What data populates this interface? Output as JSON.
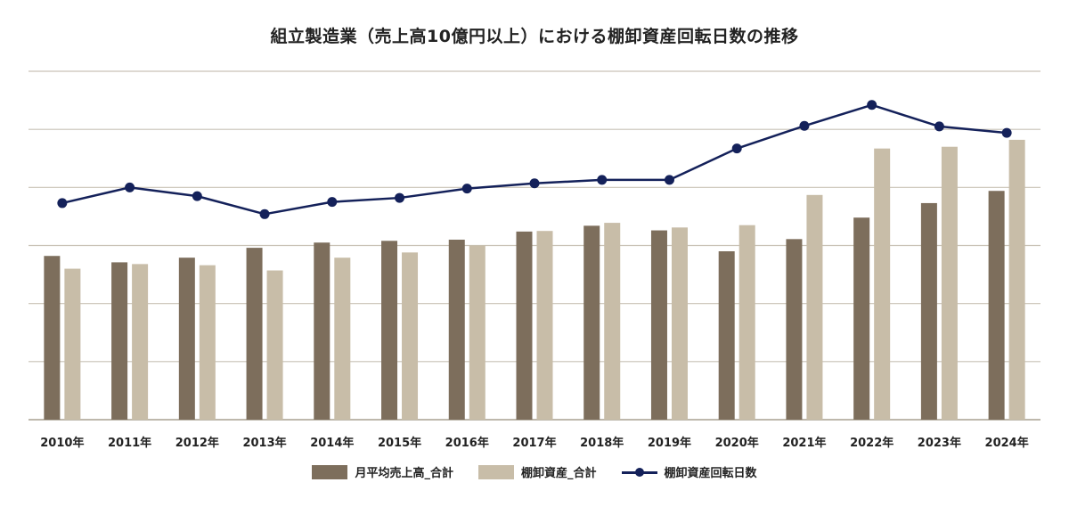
{
  "chart_data": {
    "type": "bar",
    "title": "組立製造業（売上高10億円以上）における棚卸資産回転日数の推移",
    "categories": [
      "2010年",
      "2011年",
      "2012年",
      "2013年",
      "2014年",
      "2015年",
      "2016年",
      "2017年",
      "2018年",
      "2019年",
      "2020年",
      "2021年",
      "2022年",
      "2023年",
      "2024年"
    ],
    "series": [
      {
        "name": "月平均売上高_合計",
        "kind": "bar",
        "color": "#7d6e5c",
        "values": [
          2.82,
          2.71,
          2.79,
          2.96,
          3.05,
          3.08,
          3.1,
          3.24,
          3.34,
          3.26,
          2.9,
          3.11,
          3.48,
          3.73,
          3.94
        ]
      },
      {
        "name": "棚卸資産_合計",
        "kind": "bar",
        "color": "#c8bda8",
        "values": [
          2.6,
          2.68,
          2.66,
          2.57,
          2.79,
          2.88,
          3.0,
          3.25,
          3.39,
          3.31,
          3.35,
          3.87,
          4.67,
          4.7,
          4.82
        ]
      },
      {
        "name": "棚卸資産回転日数",
        "kind": "line",
        "color": "#14215a",
        "values": [
          3.73,
          4.0,
          3.85,
          3.54,
          3.75,
          3.82,
          3.98,
          4.07,
          4.13,
          4.13,
          4.67,
          5.06,
          5.42,
          5.05,
          4.94
        ]
      }
    ],
    "ylim": [
      0,
      6
    ],
    "grid": true,
    "legend_position": "bottom"
  }
}
